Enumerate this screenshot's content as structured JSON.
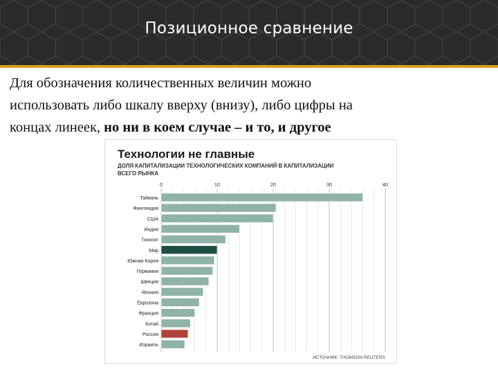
{
  "slide": {
    "title": "Позиционное сравнение",
    "body_line1": "Для обозначения количественных величин можно",
    "body_line2": "использовать либо шкалу вверху (внизу), либо цифры на",
    "body_line3_plain": "концах линеек, ",
    "body_line3_bold": "но ни в коем случае – и то, и другое"
  },
  "colors": {
    "title_bg": "#2b2b2b",
    "accent_line": "#d9a01e",
    "bar_default": "#8fb3a5",
    "bar_world": "#1f4d45",
    "bar_russia": "#b0443a"
  },
  "chart_data": {
    "type": "bar",
    "orientation": "horizontal",
    "title": "Технологии не главные",
    "subtitle_line1": "ДОЛЯ КАПИТАЛИЗАЦИИ ТЕХНОЛОГИЧЕСКИХ КОМПАНИЙ В КАПИТАЛИЗАЦИИ",
    "subtitle_line2": "ВСЕГО РЫНКА",
    "source": "ИСТОЧНИК: THOMSON REUTERS",
    "xlim": [
      0,
      40
    ],
    "xticks": [
      0,
      10,
      20,
      30,
      40
    ],
    "grid": true,
    "categories": [
      "Тайвань",
      "Финляндия",
      "США",
      "Индия",
      "Гонконг",
      "Мир",
      "Южная Корея",
      "Германия",
      "Швеция",
      "Япония",
      "Еврозона",
      "Франция",
      "Китай",
      "Россия",
      "Израиль"
    ],
    "values": [
      36,
      20.5,
      20,
      14,
      11.5,
      10,
      9.5,
      9.2,
      8.5,
      7.5,
      6.8,
      6,
      5.2,
      4.8,
      4.2
    ],
    "highlight": {
      "Мир": "world",
      "Россия": "russia"
    }
  }
}
